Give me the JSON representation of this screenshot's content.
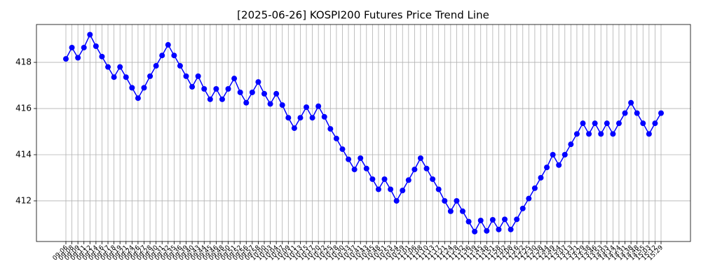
{
  "chart_data": {
    "type": "line",
    "title": "[2025-06-26] KOSPI200 Futures Price Trend Line",
    "categories": [
      "09:06",
      "09:08",
      "09:09",
      "09:11",
      "09:12",
      "09:14",
      "09:16",
      "09:17",
      "09:18",
      "09:19",
      "09:21",
      "09:24",
      "09:26",
      "09:27",
      "09:28",
      "09:30",
      "09:31",
      "09:32",
      "09:35",
      "09:36",
      "09:39",
      "09:40",
      "09:43",
      "09:44",
      "09:45",
      "09:46",
      "09:48",
      "09:50",
      "09:51",
      "09:52",
      "09:56",
      "09:57",
      "09:58",
      "10:00",
      "10:03",
      "10:04",
      "10:07",
      "10:09",
      "10:11",
      "10:13",
      "10:15",
      "10:17",
      "10:20",
      "10:22",
      "10:25",
      "10:28",
      "10:30",
      "10:33",
      "10:37",
      "10:41",
      "10:43",
      "10:45",
      "10:48",
      "10:51",
      "10:53",
      "10:54",
      "10:59",
      "11:01",
      "11:06",
      "11:08",
      "11:10",
      "11:13",
      "11:17",
      "11:21",
      "11:24",
      "11:28",
      "11:32",
      "11:36",
      "11:39",
      "11:45",
      "11:48",
      "11:51",
      "11:58",
      "12:02",
      "12:08",
      "12:16",
      "12:22",
      "12:25",
      "12:30",
      "12:38",
      "12:44",
      "12:49",
      "12:54",
      "13:07",
      "13:13",
      "13:21",
      "13:29",
      "13:38",
      "13:46",
      "13:53",
      "14:03",
      "14:14",
      "14:24",
      "14:31",
      "14:38",
      "14:48",
      "14:55",
      "15:03",
      "15:12",
      "15:29"
    ],
    "values": [
      418.15,
      418.64,
      418.2,
      418.64,
      419.2,
      418.7,
      418.25,
      417.8,
      417.36,
      417.8,
      417.36,
      416.9,
      416.45,
      416.9,
      417.4,
      417.85,
      418.3,
      418.76,
      418.3,
      417.85,
      417.4,
      416.94,
      417.4,
      416.85,
      416.4,
      416.85,
      416.4,
      416.85,
      417.3,
      416.7,
      416.25,
      416.7,
      417.15,
      416.64,
      416.2,
      416.64,
      416.15,
      415.6,
      415.15,
      415.6,
      416.06,
      415.6,
      416.1,
      415.64,
      415.12,
      414.7,
      414.24,
      413.8,
      413.36,
      413.85,
      413.4,
      412.94,
      412.5,
      412.94,
      412.5,
      412,
      412.45,
      412.9,
      413.36,
      413.85,
      413.4,
      412.94,
      412.5,
      412,
      411.55,
      412,
      411.55,
      411.1,
      410.67,
      411.15,
      410.7,
      411.18,
      410.76,
      411.2,
      410.76,
      411.2,
      411.67,
      412.1,
      412.55,
      413,
      413.45,
      414,
      413.55,
      414,
      414.45,
      414.9,
      415.36,
      414.9,
      415.36,
      414.9,
      415.36,
      414.9,
      415.36,
      415.8,
      416.25,
      415.8,
      415.36,
      414.9,
      415.36,
      415.8
    ],
    "color": "#0000ff",
    "ylim": [
      410.24,
      419.64
    ],
    "yticks": [
      412,
      414,
      416,
      418
    ],
    "grid": true
  }
}
